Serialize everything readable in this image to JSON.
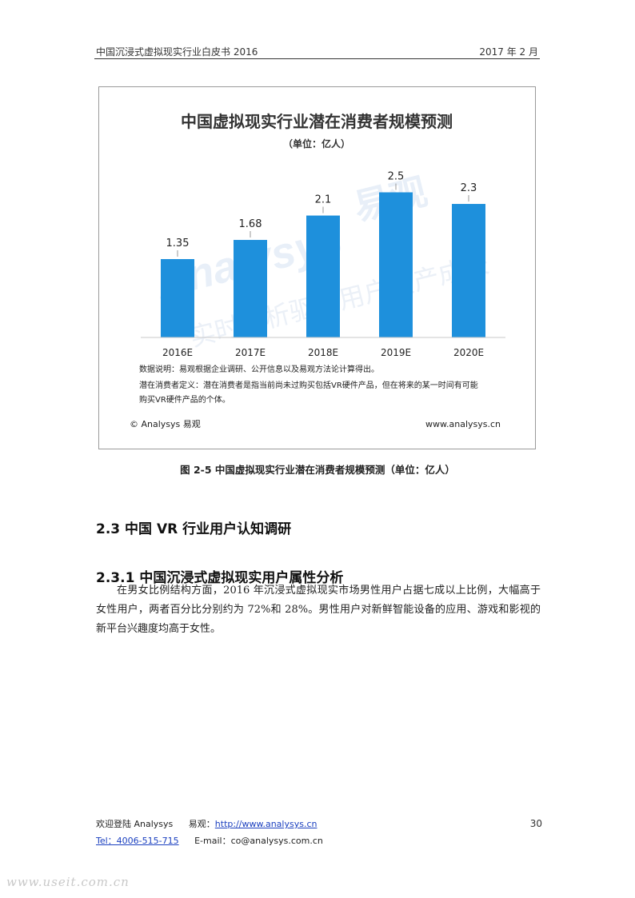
{
  "header": {
    "doc_title": "中国沉浸式虚拟现实行业白皮书 2016",
    "date": "2017 年 2 月"
  },
  "chart_data": {
    "type": "bar",
    "title": "中国虚拟现实行业潜在消费者规模预测",
    "subtitle": "（单位：亿人）",
    "categories": [
      "2016E",
      "2017E",
      "2018E",
      "2019E",
      "2020E"
    ],
    "values": [
      1.35,
      1.68,
      2.1,
      2.5,
      2.3
    ],
    "data_labels": [
      "1.35",
      "1.68",
      "2.1",
      "2.5",
      "2.3"
    ],
    "ylim": [
      0,
      2.7
    ],
    "bar_color": "#1e90dc",
    "notes": [
      "数据说明：易观根据企业调研、公开信息以及易观方法论计算得出。",
      "潜在消费者定义：潜在消费者是指当前尚未过购买包括VR硬件产品，但在将来的某一时间有可能",
      "购买VR硬件产品的个体。"
    ],
    "copyright": "© Analysys 易观",
    "website": "www.analysys.cn",
    "watermark": {
      "brand": "Analysys",
      "brand_cn": "易观",
      "slogan": "实时分析驱动用户资产成长"
    }
  },
  "figure": {
    "caption": "图 2-5 中国虚拟现实行业潜在消费者规模预测（单位：亿人）"
  },
  "sections": {
    "h2": "2.3 中国 VR 行业用户认知调研",
    "h3": "2.3.1 中国沉浸式虚拟现实用户属性分析",
    "paragraph": "在男女比例结构方面，2016 年沉浸式虚拟现实市场男性用户占据七成以上比例，大幅高于女性用户，两者百分比分别约为 72%和 28%。男性用户对新鲜智能设备的应用、游戏和影视的新平台兴趣度均高于女性。"
  },
  "footer": {
    "welcome": "欢迎登陆 Analysys",
    "brand_label": "易观：",
    "url": "http://www.analysys.cn",
    "tel": "Tel：4006-515-715",
    "email": "E-mail：co@analysys.com.cn",
    "page_number": "30"
  },
  "site_watermark": "www.useit.com.cn"
}
